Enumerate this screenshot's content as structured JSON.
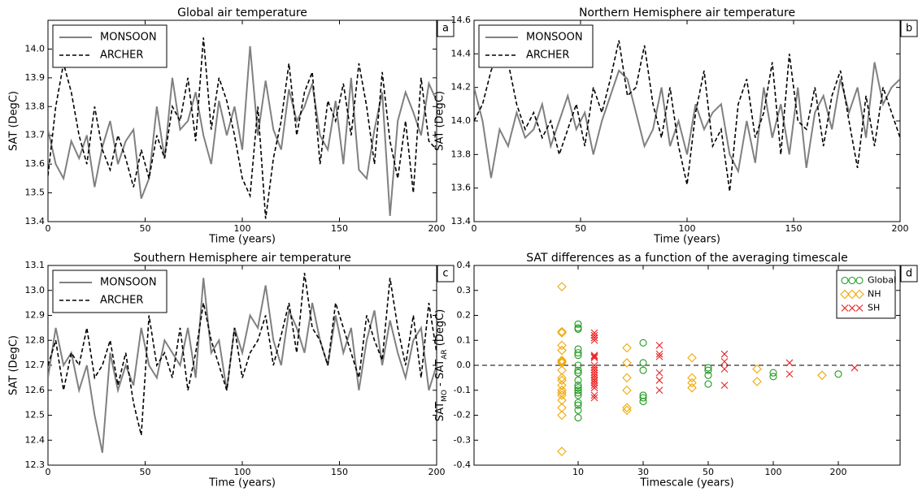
{
  "chart_data": [
    {
      "type": "line",
      "title": "Global air temperature",
      "panel_label": "a",
      "xlabel": "Time (years)",
      "ylabel": "SAT (DegC)",
      "xlim": [
        0,
        200
      ],
      "xticks": [
        0,
        50,
        100,
        150,
        200
      ],
      "ylim": [
        13.4,
        14.1
      ],
      "yticks": [
        13.4,
        13.5,
        13.6,
        13.7,
        13.8,
        13.9,
        {
          "value": 14,
          "label": "14.0"
        }
      ],
      "legend": "upper left",
      "x": [
        0,
        4,
        8,
        12,
        16,
        20,
        24,
        28,
        32,
        36,
        40,
        44,
        48,
        52,
        56,
        60,
        64,
        68,
        72,
        76,
        80,
        84,
        88,
        92,
        96,
        100,
        104,
        108,
        112,
        116,
        120,
        124,
        128,
        132,
        136,
        140,
        144,
        148,
        152,
        156,
        160,
        164,
        168,
        172,
        176,
        180,
        184,
        188,
        192,
        196,
        200
      ],
      "series": [
        {
          "name": "MONSOON",
          "color": "#808080",
          "linestyle": "solid",
          "values": [
            13.72,
            13.6,
            13.55,
            13.68,
            13.62,
            13.7,
            13.52,
            13.66,
            13.75,
            13.6,
            13.68,
            13.72,
            13.48,
            13.55,
            13.8,
            13.62,
            13.9,
            13.72,
            13.75,
            13.85,
            13.7,
            13.6,
            13.82,
            13.7,
            13.8,
            13.65,
            14.01,
            13.7,
            13.89,
            13.72,
            13.65,
            13.86,
            13.75,
            13.8,
            13.88,
            13.7,
            13.65,
            13.82,
            13.6,
            13.9,
            13.58,
            13.55,
            13.72,
            13.85,
            13.42,
            13.75,
            13.85,
            13.78,
            13.7,
            13.88,
            13.82
          ]
        },
        {
          "name": "ARCHER",
          "color": "#000000",
          "linestyle": "dashed",
          "values": [
            13.56,
            13.8,
            13.95,
            13.85,
            13.7,
            13.6,
            13.8,
            13.65,
            13.58,
            13.7,
            13.62,
            13.52,
            13.65,
            13.55,
            13.7,
            13.62,
            13.8,
            13.75,
            13.9,
            13.68,
            14.04,
            13.72,
            13.9,
            13.82,
            13.7,
            13.55,
            13.49,
            13.8,
            13.41,
            13.62,
            13.75,
            13.95,
            13.7,
            13.85,
            13.92,
            13.6,
            13.82,
            13.75,
            13.88,
            13.7,
            13.95,
            13.8,
            13.6,
            13.92,
            13.68,
            13.55,
            13.75,
            13.5,
            13.9,
            13.68,
            13.65
          ]
        }
      ]
    },
    {
      "type": "line",
      "title": "Northern Hemisphere air temperature",
      "panel_label": "b",
      "xlabel": "Time (years)",
      "ylabel": "SAT (DegC)",
      "xlim": [
        0,
        200
      ],
      "xticks": [
        0,
        50,
        100,
        150,
        200
      ],
      "ylim": [
        13.4,
        14.6
      ],
      "yticks": [
        13.4,
        13.6,
        13.8,
        {
          "value": 14,
          "label": "14.0"
        },
        14.2,
        14.4,
        14.6
      ],
      "legend": "upper left",
      "x": [
        0,
        4,
        8,
        12,
        16,
        20,
        24,
        28,
        32,
        36,
        40,
        44,
        48,
        52,
        56,
        60,
        64,
        68,
        72,
        76,
        80,
        84,
        88,
        92,
        96,
        100,
        104,
        108,
        112,
        116,
        120,
        124,
        128,
        132,
        136,
        140,
        144,
        148,
        152,
        156,
        160,
        164,
        168,
        172,
        176,
        180,
        184,
        188,
        192,
        196,
        200
      ],
      "series": [
        {
          "name": "MONSOON",
          "color": "#808080",
          "linestyle": "solid",
          "values": [
            14.2,
            14,
            13.66,
            13.95,
            13.85,
            14.05,
            13.9,
            13.95,
            14.1,
            13.85,
            14,
            14.15,
            13.95,
            14.05,
            13.8,
            14,
            14.15,
            14.3,
            14.25,
            14.05,
            13.85,
            13.95,
            14.2,
            13.85,
            14,
            13.8,
            14.1,
            13.95,
            14.05,
            14.1,
            13.8,
            13.7,
            14,
            13.75,
            14.2,
            13.9,
            14.1,
            13.8,
            14.2,
            13.72,
            14.05,
            14.15,
            13.95,
            14.25,
            14.05,
            14.2,
            13.9,
            14.35,
            14.1,
            14.2,
            14.25
          ]
        },
        {
          "name": "ARCHER",
          "color": "#000000",
          "linestyle": "dashed",
          "values": [
            14,
            14.1,
            14.3,
            14.42,
            14.35,
            14.1,
            13.95,
            14.05,
            13.9,
            14,
            13.8,
            13.95,
            14.1,
            13.85,
            14.2,
            14.05,
            14.25,
            14.48,
            14.15,
            14.2,
            14.45,
            14.1,
            13.9,
            14.2,
            13.85,
            13.62,
            14.05,
            14.3,
            13.85,
            13.95,
            13.58,
            14.1,
            14.25,
            13.9,
            14.05,
            14.35,
            13.8,
            14.4,
            14,
            13.95,
            14.2,
            13.85,
            14.15,
            14.3,
            14,
            13.72,
            14.15,
            13.85,
            14.2,
            14.05,
            13.9
          ]
        }
      ]
    },
    {
      "type": "line",
      "title": "Southern Hemisphere air temperature",
      "panel_label": "c",
      "xlabel": "Time (years)",
      "ylabel": "SAT (DegC)",
      "xlim": [
        0,
        200
      ],
      "xticks": [
        0,
        50,
        100,
        150,
        200
      ],
      "ylim": [
        12.3,
        13.1
      ],
      "yticks": [
        12.3,
        12.4,
        12.5,
        12.6,
        12.7,
        12.8,
        12.9,
        {
          "value": 13,
          "label": "13.0"
        },
        13.1
      ],
      "legend": "upper left",
      "x": [
        0,
        4,
        8,
        12,
        16,
        20,
        24,
        28,
        32,
        36,
        40,
        44,
        48,
        52,
        56,
        60,
        64,
        68,
        72,
        76,
        80,
        84,
        88,
        92,
        96,
        100,
        104,
        108,
        112,
        116,
        120,
        124,
        128,
        132,
        136,
        140,
        144,
        148,
        152,
        156,
        160,
        164,
        168,
        172,
        176,
        180,
        184,
        188,
        192,
        196,
        200
      ],
      "series": [
        {
          "name": "MONSOON",
          "color": "#808080",
          "linestyle": "solid",
          "values": [
            12.65,
            12.85,
            12.7,
            12.75,
            12.6,
            12.7,
            12.5,
            12.35,
            12.75,
            12.6,
            12.7,
            12.62,
            12.85,
            12.7,
            12.65,
            12.8,
            12.75,
            12.7,
            12.85,
            12.65,
            13.05,
            12.75,
            12.8,
            12.6,
            12.85,
            12.75,
            12.9,
            12.85,
            13.02,
            12.8,
            12.7,
            12.92,
            12.85,
            12.75,
            12.95,
            12.8,
            12.7,
            12.9,
            12.75,
            12.85,
            12.6,
            12.8,
            12.92,
            12.7,
            12.88,
            12.75,
            12.65,
            12.8,
            12.85,
            12.6,
            12.7
          ]
        },
        {
          "name": "ARCHER",
          "color": "#000000",
          "linestyle": "dashed",
          "values": [
            12.7,
            12.8,
            12.6,
            12.75,
            12.7,
            12.85,
            12.65,
            12.7,
            12.8,
            12.62,
            12.75,
            12.55,
            12.42,
            12.9,
            12.7,
            12.75,
            12.65,
            12.85,
            12.6,
            12.75,
            12.95,
            12.8,
            12.7,
            12.6,
            12.85,
            12.65,
            12.75,
            12.8,
            12.9,
            12.7,
            12.82,
            12.95,
            12.75,
            13.07,
            12.85,
            12.8,
            12.7,
            12.95,
            12.85,
            12.75,
            12.65,
            12.9,
            12.8,
            12.72,
            13.05,
            12.85,
            12.7,
            12.9,
            12.65,
            12.95,
            12.75
          ]
        }
      ]
    },
    {
      "type": "scatter",
      "title": "SAT differences as a function of the averaging timescale",
      "panel_label": "d",
      "xlabel": "Timescale (years)",
      "ylabel": [
        "SAT",
        "MO",
        " - SAT",
        "AR",
        " (DegC)"
      ],
      "categories": [
        10,
        30,
        50,
        100,
        200
      ],
      "ylim": [
        -0.4,
        0.4
      ],
      "yticks": [
        -0.4,
        -0.3,
        -0.2,
        -0.1,
        {
          "value": 0,
          "label": "0.0"
        },
        0.1,
        0.2,
        0.3,
        0.4
      ],
      "hline": 0,
      "legend": "upper right",
      "series": [
        {
          "name": "Global",
          "color": "#1f9a1f",
          "marker": "o",
          "x": [
            10,
            10,
            10,
            10,
            10,
            10,
            10,
            10,
            10,
            10,
            10,
            10,
            10,
            10,
            10,
            10,
            10,
            10,
            10,
            10,
            30,
            30,
            30,
            30,
            30,
            30,
            50,
            50,
            50,
            50,
            100,
            100,
            200
          ],
          "values": [
            0.165,
            0.145,
            0.15,
            0.065,
            0.05,
            0.04,
            -0.02,
            -0.03,
            -0.06,
            -0.08,
            -0.1,
            -0.11,
            -0.12,
            -0.15,
            -0.16,
            -0.18,
            -0.21,
            -0.09,
            -0.03,
            0,
            0.09,
            0.01,
            -0.02,
            -0.12,
            -0.13,
            -0.145,
            -0.01,
            -0.02,
            -0.04,
            -0.075,
            -0.03,
            -0.045,
            -0.035
          ]
        },
        {
          "name": "NH",
          "color": "#f0a800",
          "marker": "D",
          "x": [
            10,
            10,
            10,
            10,
            10,
            10,
            10,
            10,
            10,
            10,
            10,
            10,
            10,
            10,
            10,
            10,
            10,
            10,
            10,
            10,
            30,
            30,
            30,
            30,
            30,
            30,
            50,
            50,
            50,
            50,
            100,
            100,
            200
          ],
          "values": [
            0.315,
            0.135,
            0.13,
            0.08,
            0.06,
            0.02,
            0.015,
            -0.02,
            -0.06,
            -0.08,
            -0.1,
            -0.11,
            -0.12,
            -0.14,
            -0.17,
            -0.2,
            -0.345,
            -0.1,
            0.01,
            -0.05,
            0.07,
            0.01,
            -0.05,
            -0.1,
            -0.17,
            -0.18,
            0.03,
            -0.05,
            -0.07,
            -0.09,
            -0.015,
            -0.065,
            -0.04
          ]
        },
        {
          "name": "SH",
          "color": "#ee2020",
          "marker": "x",
          "x": [
            10,
            10,
            10,
            10,
            10,
            10,
            10,
            10,
            10,
            10,
            10,
            10,
            10,
            10,
            10,
            10,
            10,
            10,
            10,
            10,
            30,
            30,
            30,
            30,
            30,
            30,
            50,
            50,
            50,
            50,
            100,
            100,
            200
          ],
          "values": [
            0.13,
            0.12,
            0.1,
            0.04,
            0.03,
            -0.01,
            -0.02,
            -0.04,
            -0.05,
            -0.06,
            -0.07,
            -0.09,
            -0.12,
            -0.13,
            0,
            -0.03,
            -0.08,
            0.11,
            -0.06,
            0.035,
            0.08,
            0.045,
            0.035,
            -0.03,
            -0.06,
            -0.1,
            0.045,
            0.015,
            -0.015,
            -0.08,
            0.01,
            -0.035,
            -0.01
          ]
        }
      ]
    }
  ]
}
